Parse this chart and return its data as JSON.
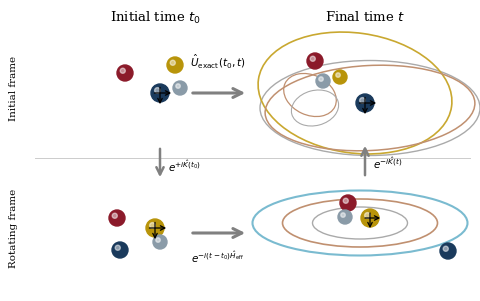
{
  "bg_color": "#ffffff",
  "top_left_label": "Initial time $t_0$",
  "top_right_label": "Final time $t$",
  "left_label_top": "Initial frame",
  "left_label_bottom": "Rotating frame",
  "colors": {
    "crimson": "#8B1A2A",
    "gold": "#B8940A",
    "steel": "#8A9BA8",
    "navy_dark": "#1a3a5c",
    "arrow_gray": "#808080",
    "ellipse_gold": "#C9A830",
    "ellipse_gray": "#AAAAAA",
    "ellipse_brown": "#C09070",
    "ellipse_blue": "#7ABBD0"
  }
}
